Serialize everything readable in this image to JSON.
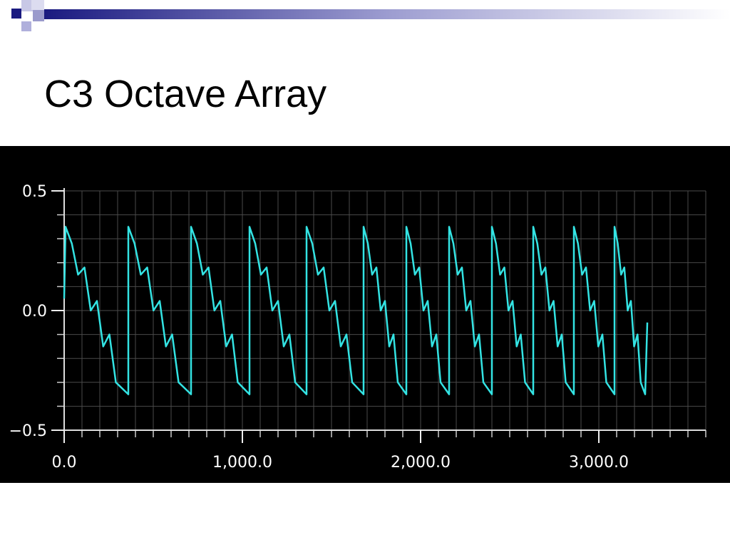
{
  "header": {
    "title": "C3 Octave Array"
  },
  "chart_data": {
    "type": "line",
    "x": [
      0,
      8,
      43,
      78,
      114,
      149,
      184,
      219,
      254,
      290,
      360,
      360,
      395,
      430,
      466,
      501,
      536,
      571,
      606,
      642,
      712,
      712,
      745,
      778,
      810,
      843,
      876,
      909,
      942,
      974,
      1040,
      1040,
      1072,
      1104,
      1136,
      1168,
      1200,
      1232,
      1264,
      1296,
      1360,
      1360,
      1392,
      1424,
      1456,
      1488,
      1520,
      1552,
      1584,
      1616,
      1680,
      1680,
      1704,
      1728,
      1752,
      1776,
      1800,
      1824,
      1848,
      1872,
      1920,
      1920,
      1944,
      1968,
      1992,
      2016,
      2040,
      2064,
      2088,
      2112,
      2160,
      2160,
      2184,
      2208,
      2232,
      2256,
      2280,
      2304,
      2328,
      2352,
      2400,
      2400,
      2423,
      2446,
      2470,
      2493,
      2516,
      2539,
      2562,
      2586,
      2632,
      2632,
      2655,
      2678,
      2700,
      2723,
      2746,
      2769,
      2792,
      2814,
      2860,
      2860,
      2883,
      2906,
      2928,
      2951,
      2974,
      2997,
      3020,
      3042,
      3088,
      3088,
      3106,
      3125,
      3143,
      3162,
      3180,
      3198,
      3217,
      3235,
      3260,
      3272
    ],
    "values": [
      0.05,
      0.35,
      0.28,
      0.15,
      0.18,
      0.0,
      0.04,
      -0.15,
      -0.1,
      -0.3,
      -0.35,
      0.35,
      0.28,
      0.15,
      0.18,
      0.0,
      0.04,
      -0.15,
      -0.1,
      -0.3,
      -0.35,
      0.35,
      0.28,
      0.15,
      0.18,
      0.0,
      0.04,
      -0.15,
      -0.1,
      -0.3,
      -0.35,
      0.35,
      0.28,
      0.15,
      0.18,
      0.0,
      0.04,
      -0.15,
      -0.1,
      -0.3,
      -0.35,
      0.35,
      0.28,
      0.15,
      0.18,
      0.0,
      0.04,
      -0.15,
      -0.1,
      -0.3,
      -0.35,
      0.35,
      0.28,
      0.15,
      0.18,
      0.0,
      0.04,
      -0.15,
      -0.1,
      -0.3,
      -0.35,
      0.35,
      0.28,
      0.15,
      0.18,
      0.0,
      0.04,
      -0.15,
      -0.1,
      -0.3,
      -0.35,
      0.35,
      0.28,
      0.15,
      0.18,
      0.0,
      0.04,
      -0.15,
      -0.1,
      -0.3,
      -0.35,
      0.35,
      0.28,
      0.15,
      0.18,
      0.0,
      0.04,
      -0.15,
      -0.1,
      -0.3,
      -0.35,
      0.35,
      0.28,
      0.15,
      0.18,
      0.0,
      0.04,
      -0.15,
      -0.1,
      -0.3,
      -0.35,
      0.35,
      0.28,
      0.15,
      0.18,
      0.0,
      0.04,
      -0.15,
      -0.1,
      -0.3,
      -0.35,
      0.35,
      0.28,
      0.15,
      0.18,
      0.0,
      0.04,
      -0.15,
      -0.1,
      -0.3,
      -0.35,
      -0.05
    ],
    "color": "#33e3e3",
    "xlim": [
      0,
      3640
    ],
    "ylim": [
      -0.5,
      0.5
    ],
    "xticks": [
      {
        "value": 0,
        "label": "0.0"
      },
      {
        "value": 1000,
        "label": "1,000.0"
      },
      {
        "value": 2000,
        "label": "2,000.0"
      },
      {
        "value": 3000,
        "label": "3,000.0"
      }
    ],
    "yticks": [
      0.5,
      {
        "value": 0,
        "label": "0.0"
      },
      {
        "value": -0.5,
        "label": "−0.5"
      }
    ],
    "minor_xticks": [
      0,
      100,
      200,
      300,
      400,
      500,
      600,
      700,
      800,
      900,
      1000,
      1100,
      1200,
      1300,
      1400,
      1500,
      1600,
      1700,
      1800,
      1900,
      2000,
      2100,
      2200,
      2300,
      2400,
      2500,
      2600,
      2700,
      2800,
      2900,
      3000,
      3100,
      3200,
      3300,
      3400,
      3500,
      3600
    ],
    "minor_yticks": [
      -0.5,
      -0.4,
      -0.3,
      -0.2,
      -0.1,
      0,
      0.1,
      0.2,
      0.3,
      0.4,
      0.5
    ],
    "grid": true
  }
}
